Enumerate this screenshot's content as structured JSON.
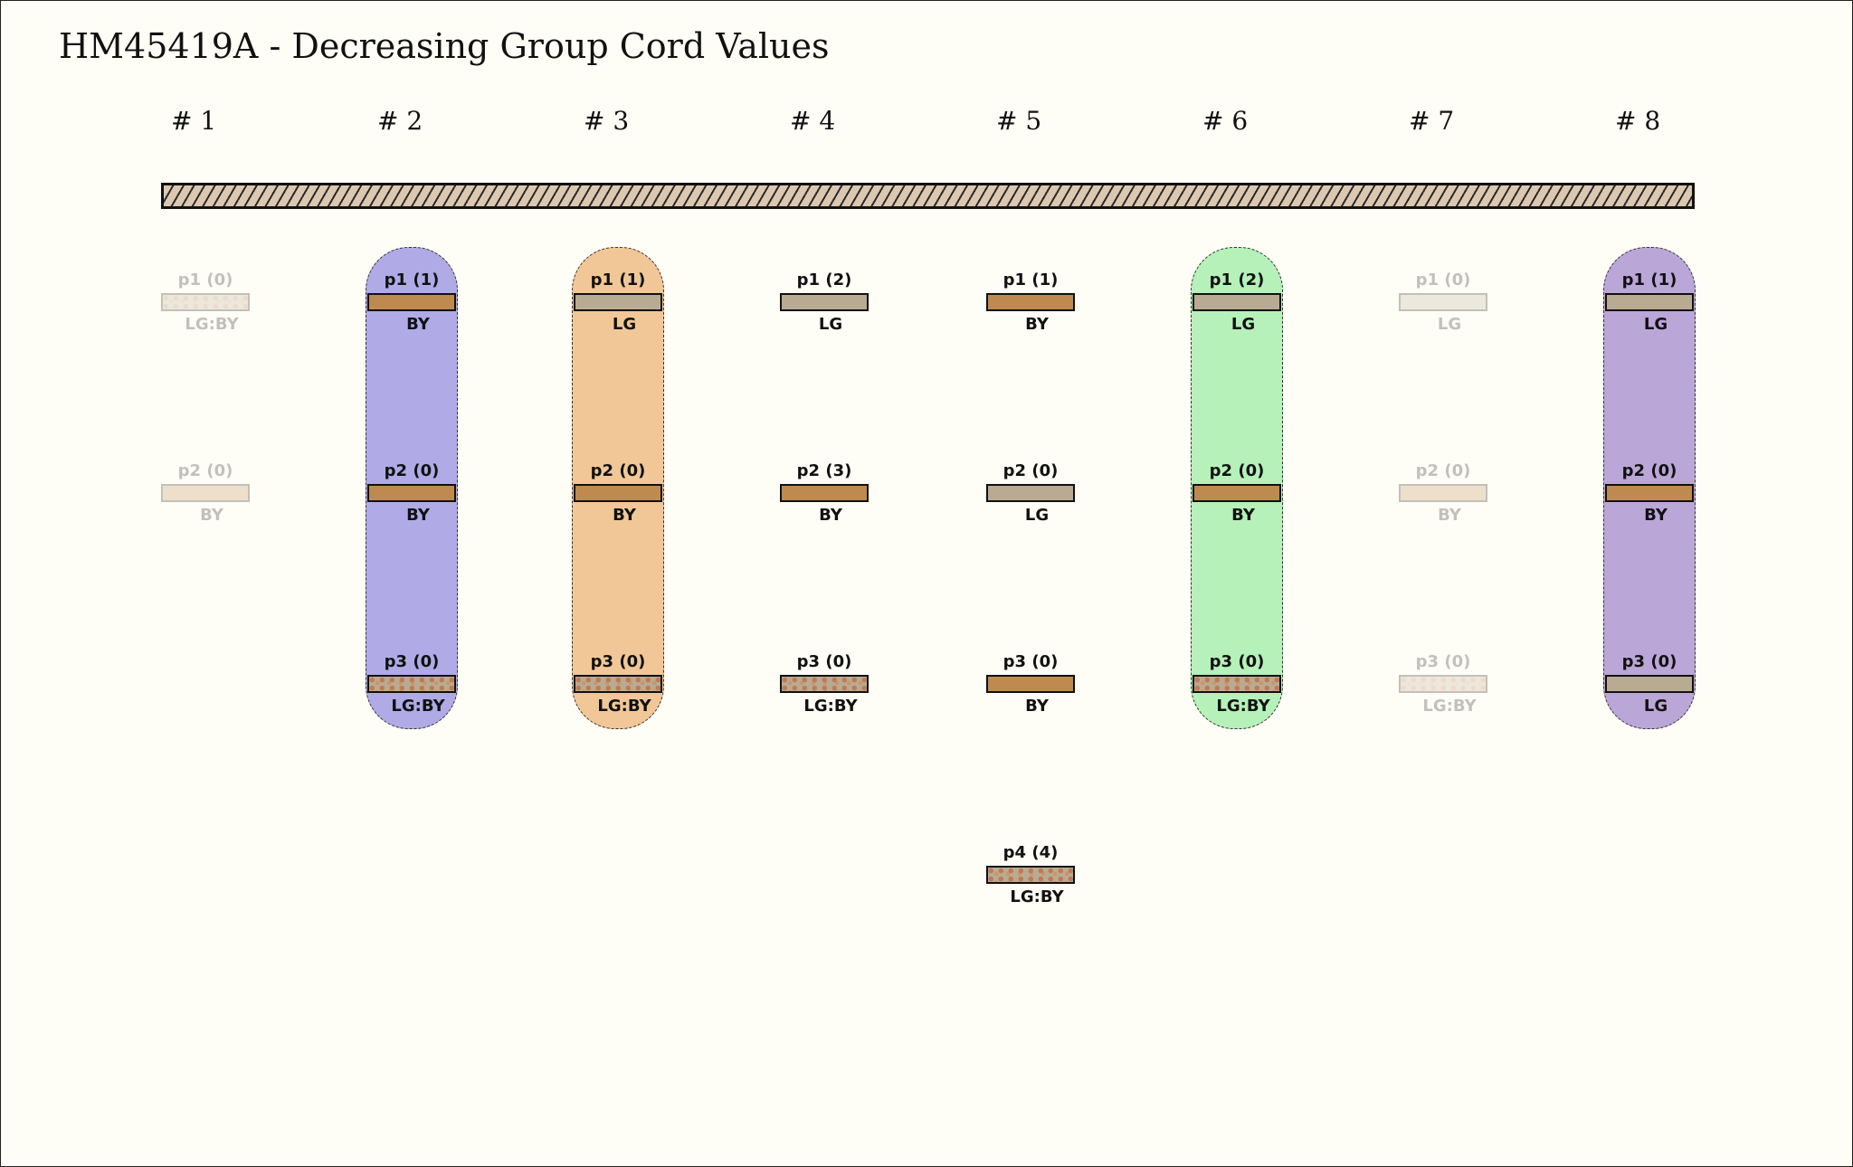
{
  "title": "HM45419A - Decreasing Group Cord Values",
  "colors": {
    "background": "#fefdf6",
    "BY": "#bf8a50",
    "LG": "#b9ab92",
    "LG:BY": "mottled #b9ab92/#bf8a50",
    "top_cord": "#dcc8b0"
  },
  "groups": [
    {
      "label": "# 1",
      "faded": true,
      "highlight": null,
      "cords": [
        {
          "label": "p1 (0)",
          "color": "LG:BY"
        },
        {
          "label": "p2 (0)",
          "color": "BY"
        }
      ]
    },
    {
      "label": "# 2",
      "faded": false,
      "highlight": "#b0aae6",
      "cords": [
        {
          "label": "p1 (1)",
          "color": "BY"
        },
        {
          "label": "p2 (0)",
          "color": "BY"
        },
        {
          "label": "p3 (0)",
          "color": "LG:BY"
        }
      ]
    },
    {
      "label": "# 3",
      "faded": false,
      "highlight": "#f1c798",
      "cords": [
        {
          "label": "p1 (1)",
          "color": "LG"
        },
        {
          "label": "p2 (0)",
          "color": "BY"
        },
        {
          "label": "p3 (0)",
          "color": "LG:BY"
        }
      ]
    },
    {
      "label": "# 4",
      "faded": false,
      "highlight": null,
      "cords": [
        {
          "label": "p1 (2)",
          "color": "LG"
        },
        {
          "label": "p2 (3)",
          "color": "BY"
        },
        {
          "label": "p3 (0)",
          "color": "LG:BY"
        }
      ]
    },
    {
      "label": "# 5",
      "faded": false,
      "highlight": null,
      "cords": [
        {
          "label": "p1 (1)",
          "color": "BY"
        },
        {
          "label": "p2 (0)",
          "color": "LG"
        },
        {
          "label": "p3 (0)",
          "color": "BY"
        },
        {
          "label": "p4 (4)",
          "color": "LG:BY"
        }
      ]
    },
    {
      "label": "# 6",
      "faded": false,
      "highlight": "#b5f1b8",
      "cords": [
        {
          "label": "p1 (2)",
          "color": "LG"
        },
        {
          "label": "p2 (0)",
          "color": "BY"
        },
        {
          "label": "p3 (0)",
          "color": "LG:BY"
        }
      ]
    },
    {
      "label": "# 7",
      "faded": true,
      "highlight": null,
      "cords": [
        {
          "label": "p1 (0)",
          "color": "LG"
        },
        {
          "label": "p2 (0)",
          "color": "BY"
        },
        {
          "label": "p3 (0)",
          "color": "LG:BY"
        }
      ]
    },
    {
      "label": "# 8",
      "faded": false,
      "highlight": "#bba6d8",
      "cords": [
        {
          "label": "p1 (1)",
          "color": "LG"
        },
        {
          "label": "p2 (0)",
          "color": "BY"
        },
        {
          "label": "p3 (0)",
          "color": "LG"
        }
      ]
    }
  ]
}
